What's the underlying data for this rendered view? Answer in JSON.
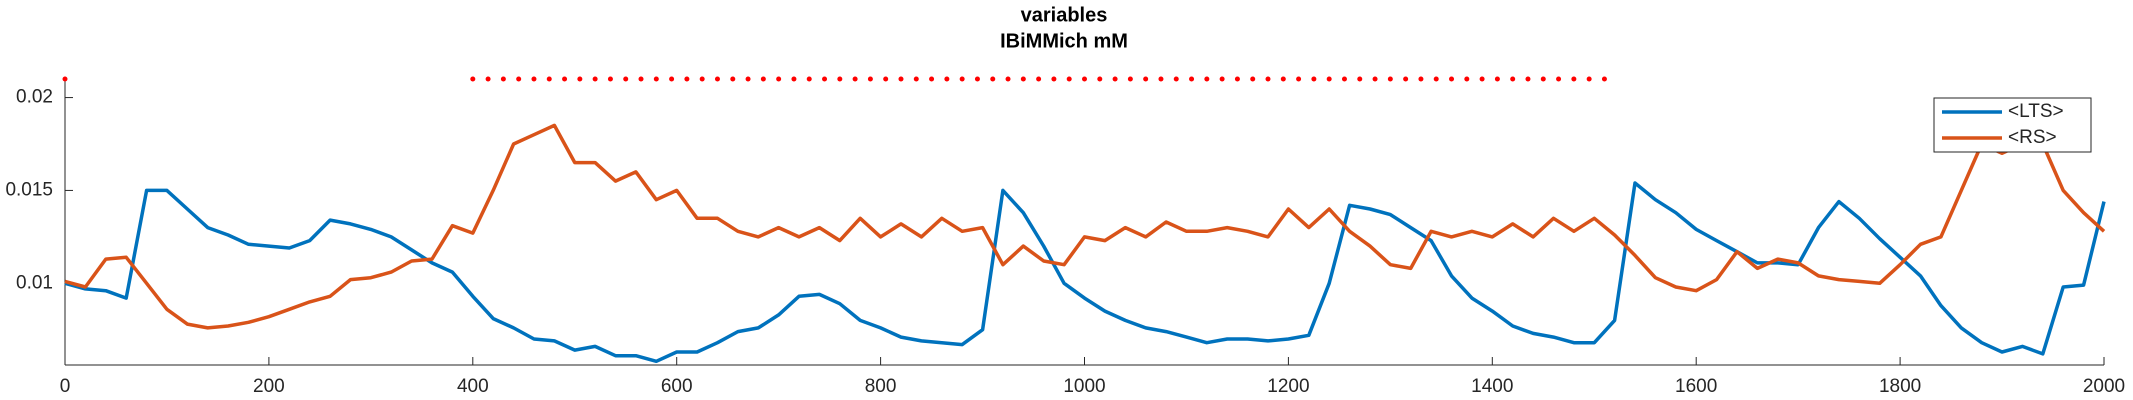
{
  "chart_data": {
    "type": "line",
    "title": [
      "variables",
      "IBiMMich mM"
    ],
    "x": [
      0,
      20,
      40,
      60,
      80,
      100,
      120,
      140,
      160,
      180,
      200,
      220,
      240,
      260,
      280,
      300,
      320,
      340,
      360,
      380,
      400,
      420,
      440,
      460,
      480,
      500,
      520,
      540,
      560,
      580,
      600,
      620,
      640,
      660,
      680,
      700,
      720,
      740,
      760,
      780,
      800,
      820,
      840,
      860,
      880,
      900,
      920,
      940,
      960,
      980,
      1000,
      1020,
      1040,
      1060,
      1080,
      1100,
      1120,
      1140,
      1160,
      1180,
      1200,
      1220,
      1240,
      1260,
      1280,
      1300,
      1320,
      1340,
      1360,
      1380,
      1400,
      1420,
      1440,
      1460,
      1480,
      1500,
      1520,
      1540,
      1560,
      1580,
      1600,
      1620,
      1640,
      1660,
      1680,
      1700,
      1720,
      1740,
      1760,
      1780,
      1800,
      1820,
      1840,
      1860,
      1880,
      1900,
      1920,
      1940,
      1960,
      1980,
      2000
    ],
    "series": [
      {
        "name": "<LTS>",
        "color": "#0072bd",
        "values": [
          0.01,
          0.0097,
          0.0096,
          0.0092,
          0.015,
          0.015,
          0.014,
          0.013,
          0.0126,
          0.0121,
          0.012,
          0.0119,
          0.0123,
          0.0134,
          0.0132,
          0.0129,
          0.0125,
          0.0118,
          0.0111,
          0.0106,
          0.0093,
          0.0081,
          0.0076,
          0.007,
          0.0069,
          0.0064,
          0.0066,
          0.0061,
          0.0061,
          0.0058,
          0.0063,
          0.0063,
          0.0068,
          0.0074,
          0.0076,
          0.0083,
          0.0093,
          0.0094,
          0.0089,
          0.008,
          0.0076,
          0.0071,
          0.0069,
          0.0068,
          0.0067,
          0.0075,
          0.015,
          0.0138,
          0.012,
          0.01,
          0.0092,
          0.0085,
          0.008,
          0.0076,
          0.0074,
          0.0071,
          0.0068,
          0.007,
          0.007,
          0.0069,
          0.007,
          0.0072,
          0.01,
          0.0142,
          0.014,
          0.0137,
          0.013,
          0.0123,
          0.0104,
          0.0092,
          0.0085,
          0.0077,
          0.0073,
          0.0071,
          0.0068,
          0.0068,
          0.008,
          0.0154,
          0.0145,
          0.0138,
          0.0129,
          0.0123,
          0.0117,
          0.0111,
          0.0111,
          0.011,
          0.013,
          0.0144,
          0.0135,
          0.0124,
          0.0114,
          0.0104,
          0.0088,
          0.0076,
          0.0068,
          0.0063,
          0.0066,
          0.0062,
          0.0098,
          0.0099,
          0.0144
        ]
      },
      {
        "name": "<RS>",
        "color": "#d95319",
        "values": [
          0.0101,
          0.0098,
          0.0113,
          0.0114,
          0.01,
          0.0086,
          0.0078,
          0.0076,
          0.0077,
          0.0079,
          0.0082,
          0.0086,
          0.009,
          0.0093,
          0.0102,
          0.0103,
          0.0106,
          0.0112,
          0.0113,
          0.0131,
          0.0127,
          0.015,
          0.0175,
          0.018,
          0.0185,
          0.0165,
          0.0165,
          0.0155,
          0.016,
          0.0145,
          0.015,
          0.0135,
          0.0135,
          0.0128,
          0.0125,
          0.013,
          0.0125,
          0.013,
          0.0123,
          0.0135,
          0.0125,
          0.0132,
          0.0125,
          0.0135,
          0.0128,
          0.013,
          0.011,
          0.012,
          0.0112,
          0.011,
          0.0125,
          0.0123,
          0.013,
          0.0125,
          0.0133,
          0.0128,
          0.0128,
          0.013,
          0.0128,
          0.0125,
          0.014,
          0.013,
          0.014,
          0.0128,
          0.012,
          0.011,
          0.0108,
          0.0128,
          0.0125,
          0.0128,
          0.0125,
          0.0132,
          0.0125,
          0.0135,
          0.0128,
          0.0135,
          0.0126,
          0.0115,
          0.0103,
          0.0098,
          0.0096,
          0.0102,
          0.0117,
          0.0108,
          0.0113,
          0.0111,
          0.0104,
          0.0102,
          0.0101,
          0.01,
          0.011,
          0.0121,
          0.0125,
          0.015,
          0.0175,
          0.017,
          0.0175,
          0.0175,
          0.015,
          0.0138,
          0.0128
        ]
      }
    ],
    "markers": {
      "color": "#ff0000",
      "y": 0.021,
      "x": [
        0,
        400,
        415,
        430,
        445,
        460,
        475,
        490,
        505,
        520,
        535,
        550,
        565,
        580,
        595,
        610,
        625,
        640,
        655,
        670,
        685,
        700,
        715,
        730,
        745,
        760,
        775,
        790,
        805,
        820,
        835,
        850,
        865,
        880,
        895,
        910,
        925,
        940,
        955,
        970,
        985,
        1000,
        1015,
        1030,
        1045,
        1060,
        1075,
        1090,
        1105,
        1120,
        1135,
        1150,
        1165,
        1180,
        1195,
        1210,
        1225,
        1240,
        1255,
        1270,
        1285,
        1300,
        1315,
        1330,
        1345,
        1360,
        1375,
        1390,
        1405,
        1420,
        1435,
        1450,
        1465,
        1480,
        1495,
        1510
      ]
    },
    "xlim": [
      0,
      2000
    ],
    "xticks": [
      0,
      200,
      400,
      600,
      800,
      1000,
      1200,
      1400,
      1600,
      1800,
      2000
    ],
    "ylim": [
      0.0056,
      0.021
    ],
    "yticks": [
      0.01,
      0.015,
      0.02
    ],
    "legend": "top-right"
  }
}
